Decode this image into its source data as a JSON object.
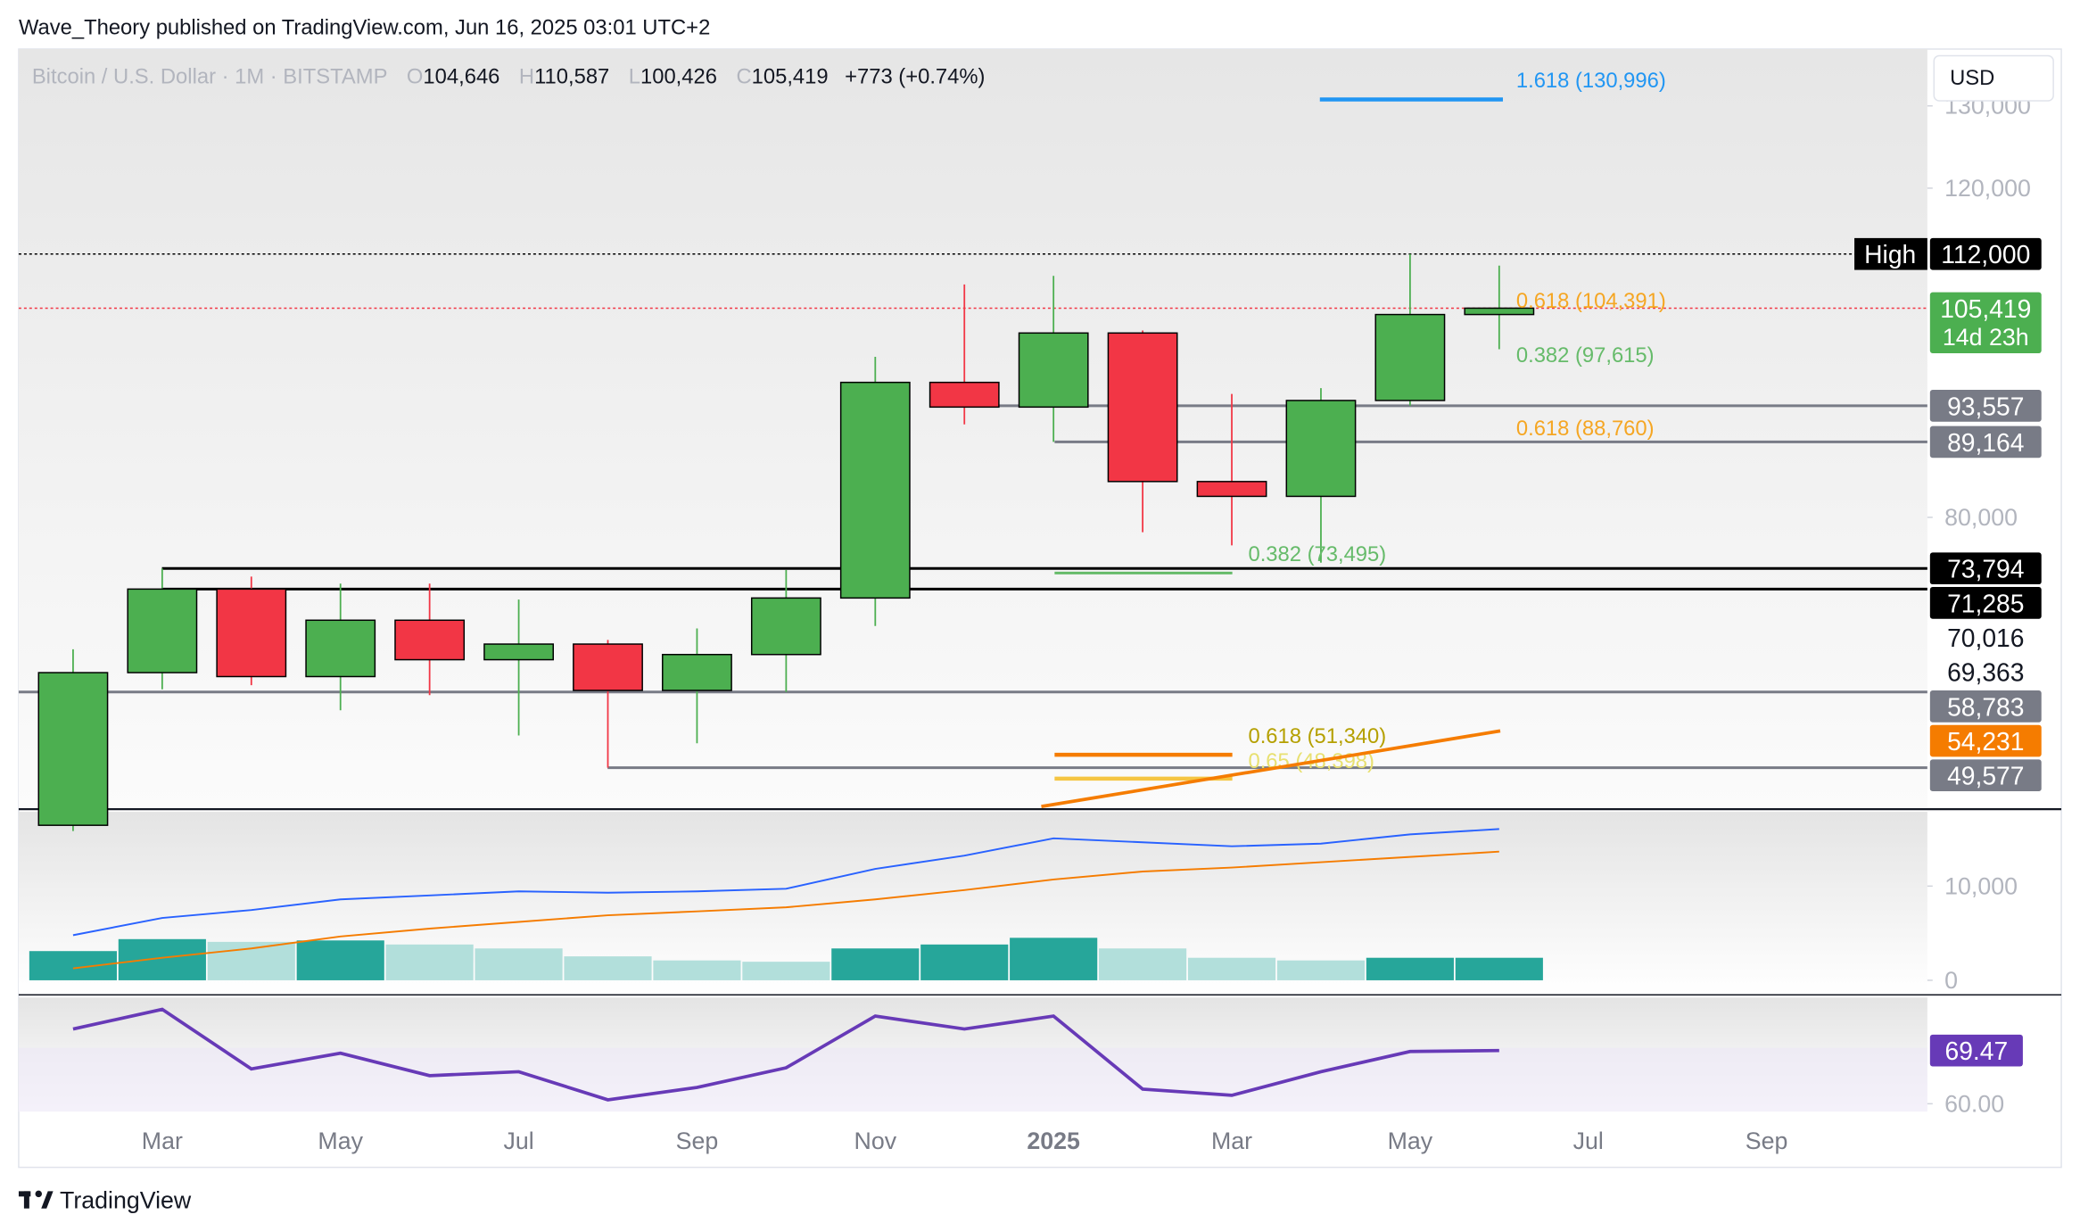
{
  "header": {
    "byline": "Wave_Theory published on TradingView.com, Jun 16, 2025 03:01 UTC+2",
    "symbol": "Bitcoin / U.S. Dollar · 1M · BITSTAMP",
    "ohlc": [
      {
        "key": "O",
        "value": "104,646"
      },
      {
        "key": "H",
        "value": "110,587"
      },
      {
        "key": "L",
        "value": "100,426"
      },
      {
        "key": "C",
        "value": "105,419"
      }
    ],
    "change": "+773 (+0.74%)",
    "currency": "USD",
    "brand": "TradingView"
  },
  "chart_data": {
    "type": "candlestick",
    "categories": [
      null,
      "Mar",
      null,
      "May",
      null,
      "Jul",
      null,
      "Sep",
      null,
      "Nov",
      null,
      "2025",
      null,
      "Mar",
      null,
      "May",
      null,
      "Jul",
      null,
      "Sep"
    ],
    "open": [
      42580,
      61130,
      71285,
      60650,
      67500,
      62700,
      64600,
      58970,
      63330,
      70200,
      96400,
      93400,
      102400,
      84350,
      82550,
      94200,
      104646,
      null,
      null,
      null
    ],
    "high": [
      63970,
      73794,
      72800,
      71950,
      71950,
      70016,
      65100,
      66500,
      73600,
      99500,
      108300,
      109350,
      102700,
      95000,
      95700,
      112000,
      110587,
      null,
      null,
      null
    ],
    "low": [
      41880,
      59100,
      59600,
      56550,
      58400,
      53500,
      49577,
      52550,
      58783,
      66800,
      91300,
      89164,
      78200,
      76600,
      74500,
      93557,
      100426,
      null,
      null,
      null
    ],
    "close": [
      61130,
      71285,
      60650,
      67500,
      62700,
      64600,
      58970,
      63330,
      70200,
      96400,
      93400,
      102400,
      84350,
      82550,
      94200,
      104646,
      105419,
      null,
      null,
      null
    ],
    "up_color": "#4caf50",
    "down_color": "#f23645",
    "ylim": [
      44700,
      136900
    ],
    "yticks": [
      {
        "value": 80000,
        "label": "80,000"
      },
      {
        "value": 120000,
        "label": "120,000"
      },
      {
        "value": 130000,
        "label": "130,000"
      }
    ],
    "price_labels": [
      {
        "value": 112000,
        "label": "112,000",
        "tag": "High",
        "color": "#000000"
      },
      {
        "value": 105419,
        "label": "105,419",
        "sub": "14d 23h",
        "color": "#4caf50"
      },
      {
        "value": 93557,
        "label": "93,557",
        "color": "#787b86"
      },
      {
        "value": 89164,
        "label": "89,164",
        "color": "#787b86"
      },
      {
        "value": 73794,
        "label": "73,794",
        "color": "#000000"
      },
      {
        "value": 71285,
        "label": "71,285",
        "color": "#000000"
      },
      {
        "value": 70016,
        "label": "70,016"
      },
      {
        "value": 69363,
        "label": "69,363"
      },
      {
        "value": 58783,
        "label": "58,783",
        "color": "#787b86"
      },
      {
        "value": 54231,
        "label": "54,231",
        "color": "#f57c00"
      },
      {
        "value": 49577,
        "label": "49,577",
        "color": "#787b86"
      }
    ],
    "annotations": [
      {
        "text": "1.618 (130,996)",
        "color": "#2196f3"
      },
      {
        "text": "0.618 (104,391)",
        "color": "#f5a623"
      },
      {
        "text": "0.382 (97,615)",
        "color": "#66bb6a"
      },
      {
        "text": "0.618 (88,760)",
        "color": "#f5a623"
      },
      {
        "text": "0.382 (73,495)",
        "color": "#66bb6a"
      },
      {
        "text": "0.618 (51,340)",
        "color": "#b5a000"
      },
      {
        "text": "0.65 (48,398)",
        "color": "#e8e070"
      }
    ],
    "volume": {
      "values": [
        3100,
        4370,
        4080,
        4230,
        3800,
        3380,
        2540,
        2110,
        1970,
        3380,
        3800,
        4510,
        3380,
        2390,
        2110,
        2390,
        2390,
        null,
        null,
        null
      ],
      "colors": [
        "#26a69a",
        "#26a69a",
        "#b2dfdb",
        "#26a69a",
        "#b2dfdb",
        "#b2dfdb",
        "#b2dfdb",
        "#b2dfdb",
        "#b2dfdb",
        "#26a69a",
        "#26a69a",
        "#26a69a",
        "#b2dfdb",
        "#b2dfdb",
        "#b2dfdb",
        "#26a69a",
        "#26a69a",
        null,
        null,
        null
      ],
      "ylim": [
        -1268,
        17746
      ],
      "yticks": [
        0,
        {
          "value": 10000,
          "label": "10,000"
        }
      ],
      "series": [
        {
          "color": "#2962ff",
          "values": [
            4790,
            6620,
            7460,
            8590,
            9010,
            9440,
            9300,
            9440,
            9720,
            11830,
            13240,
            15070,
            14650,
            14230,
            14510,
            15490,
            16060,
            null,
            null,
            null
          ]
        },
        {
          "color": "#f57c00",
          "values": [
            1270,
            2390,
            3380,
            4650,
            5490,
            6200,
            6900,
            7320,
            7750,
            8590,
            9580,
            10700,
            11550,
            11970,
            12540,
            13100,
            13660,
            null,
            null,
            null
          ]
        }
      ]
    },
    "rsi": {
      "color": "#673ab7",
      "values": [
        73.3,
        76.8,
        66.2,
        69.0,
        65.0,
        65.7,
        60.7,
        62.9,
        66.4,
        75.6,
        73.3,
        75.6,
        62.6,
        61.5,
        65.7,
        69.3,
        69.47,
        null,
        null,
        null
      ],
      "last_label": "69.47",
      "ylim": [
        58.6,
        78.9
      ],
      "yticks": [
        {
          "value": 60,
          "label": "60.00"
        }
      ]
    }
  }
}
